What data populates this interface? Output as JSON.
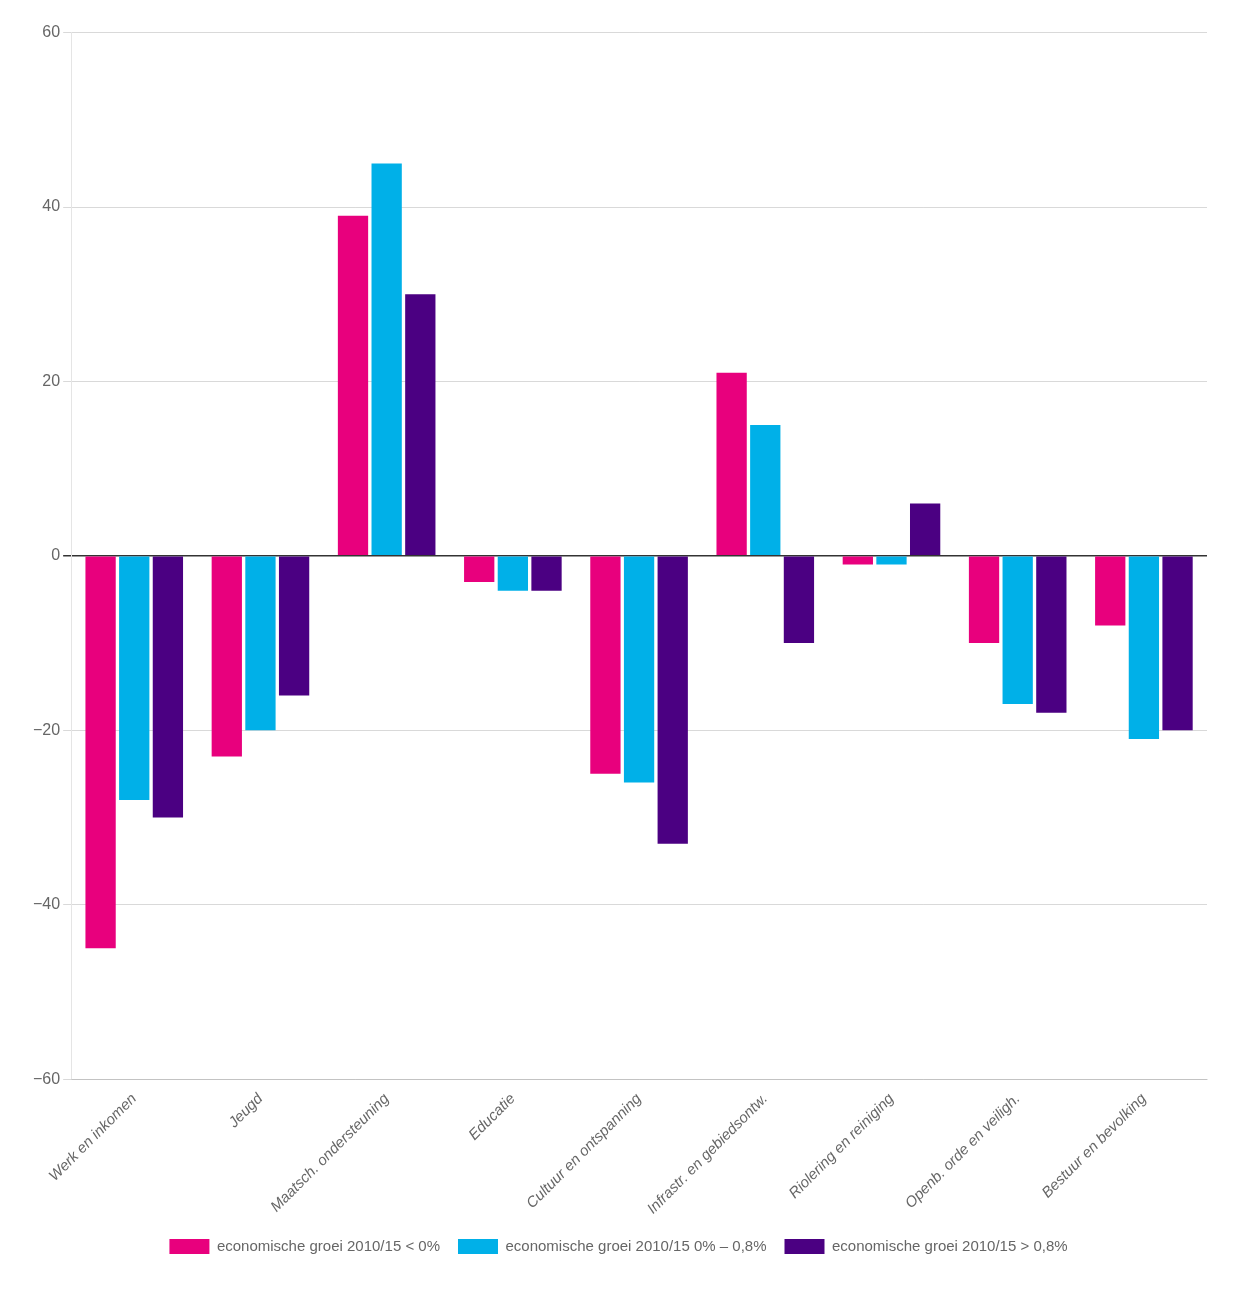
{
  "chart_data": {
    "type": "bar",
    "categories": [
      "Werk en inkomen",
      "Jeugd",
      "Maatsch. ondersteuning",
      "Educatie",
      "Cultuur en ontspanning",
      "Infrastr. en gebiedsontw.",
      "Riolering en reiniging",
      "Openb. orde en veiligh.",
      "Bestuur en bevolking"
    ],
    "series": [
      {
        "name": "economische groei 2010/15 < 0%",
        "color": "#E8007D",
        "values": [
          -45,
          -23,
          39,
          -3,
          -25,
          21,
          -1,
          -10,
          -8
        ]
      },
      {
        "name": "economische groei 2010/15 0% – 0,8%",
        "color": "#00B0E8",
        "values": [
          -28,
          -20,
          45,
          -4,
          -26,
          15,
          -1,
          -17,
          -21
        ]
      },
      {
        "name": "economische groei 2010/15 > 0,8%",
        "color": "#4B0082",
        "values": [
          -30,
          -16,
          30,
          -4,
          -33,
          -10,
          6,
          -18,
          -20
        ]
      }
    ],
    "ylim": [
      -60,
      60
    ],
    "yticks": [
      {
        "value": -60,
        "label": "−60"
      },
      {
        "value": -40,
        "label": "−40"
      },
      {
        "value": -20,
        "label": "−20"
      },
      0,
      20,
      40,
      60
    ],
    "grid": true,
    "legend": "bottom"
  }
}
